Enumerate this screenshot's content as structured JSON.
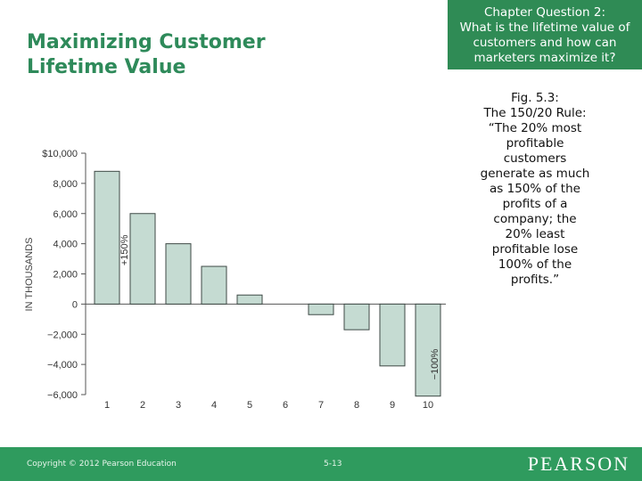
{
  "header": {
    "title": "Maximizing Customer Lifetime Value",
    "question_lines": [
      "Chapter Question 2:",
      "What is the lifetime value of",
      "customers and how can",
      "marketers maximize it?"
    ]
  },
  "caption": {
    "lines": [
      "Fig. 5.3:",
      "The 150/20 Rule:",
      "“The 20% most",
      "profitable",
      "customers",
      "generate as much",
      "as 150% of the",
      "profits of a",
      "company; the",
      "20% least",
      "profitable lose",
      "100% of the",
      "profits.”"
    ]
  },
  "chart_data": {
    "type": "bar",
    "categories": [
      "1",
      "2",
      "3",
      "4",
      "5",
      "6",
      "7",
      "8",
      "9",
      "10"
    ],
    "values": [
      8800,
      6000,
      4000,
      2500,
      600,
      0,
      -700,
      -1700,
      -4100,
      -6100
    ],
    "ylabel": "IN THOUSANDS",
    "ylim": [
      -6000,
      10000
    ],
    "yticks": [
      10000,
      8000,
      6000,
      4000,
      2000,
      0,
      -2000,
      -4000,
      -6000
    ],
    "ytick_labels": [
      "$10,000",
      "8,000",
      "6,000",
      "4,000",
      "2,000",
      "0",
      "−2,000",
      "−4,000",
      "−6,000"
    ],
    "annotations": [
      {
        "text": "+150%",
        "category": "1"
      },
      {
        "text": "−100%",
        "category": "10"
      }
    ],
    "grid": false,
    "bar_color": "#c5dbd2",
    "bar_stroke": "#3f4a46"
  },
  "footer": {
    "copyright": "Copyright © 2012 Pearson Education",
    "page": "5-13",
    "brand": "PEARSON",
    "color": "#2f9b5e"
  }
}
